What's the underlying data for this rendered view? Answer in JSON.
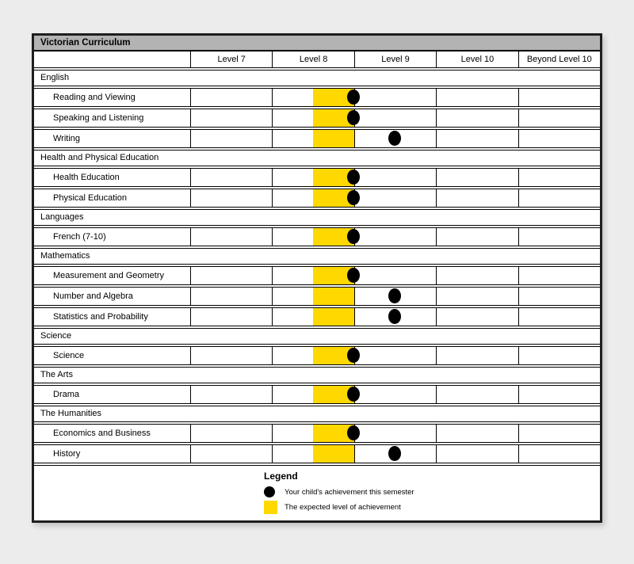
{
  "title": "Victorian Curriculum",
  "columns": [
    "Level 7",
    "Level 8",
    "Level 9",
    "Level 10",
    "Beyond Level 10"
  ],
  "expected_band": {
    "column": "Level 8",
    "portion": "upper-half-of-level-8"
  },
  "sections": [
    {
      "name": "English",
      "subjects": [
        {
          "label": "Reading and Viewing",
          "achievement": "end-of-level-8"
        },
        {
          "label": "Speaking and Listening",
          "achievement": "end-of-level-8"
        },
        {
          "label": "Writing",
          "achievement": "mid-level-9"
        }
      ]
    },
    {
      "name": "Health and Physical Education",
      "subjects": [
        {
          "label": "Health Education",
          "achievement": "end-of-level-8"
        },
        {
          "label": "Physical Education",
          "achievement": "end-of-level-8"
        }
      ]
    },
    {
      "name": "Languages",
      "subjects": [
        {
          "label": "French (7-10)",
          "achievement": "end-of-level-8"
        }
      ]
    },
    {
      "name": "Mathematics",
      "subjects": [
        {
          "label": "Measurement and Geometry",
          "achievement": "end-of-level-8"
        },
        {
          "label": "Number and Algebra",
          "achievement": "mid-level-9"
        },
        {
          "label": "Statistics and Probability",
          "achievement": "mid-level-9"
        }
      ]
    },
    {
      "name": "Science",
      "subjects": [
        {
          "label": "Science",
          "achievement": "end-of-level-8"
        }
      ]
    },
    {
      "name": "The Arts",
      "subjects": [
        {
          "label": "Drama",
          "achievement": "end-of-level-8"
        }
      ]
    },
    {
      "name": "The Humanities",
      "subjects": [
        {
          "label": "Economics and Business",
          "achievement": "end-of-level-8"
        },
        {
          "label": "History",
          "achievement": "mid-level-9"
        }
      ]
    }
  ],
  "legend": {
    "title": "Legend",
    "items": [
      {
        "marker": "achievement-dot",
        "label": "Your child's achievement this semester"
      },
      {
        "marker": "expected-band",
        "label": "The expected level of achievement"
      }
    ]
  },
  "colors": {
    "expected_band": "#FFD800",
    "achievement_dot": "#000000",
    "title_bar": "#b3b3b3"
  }
}
